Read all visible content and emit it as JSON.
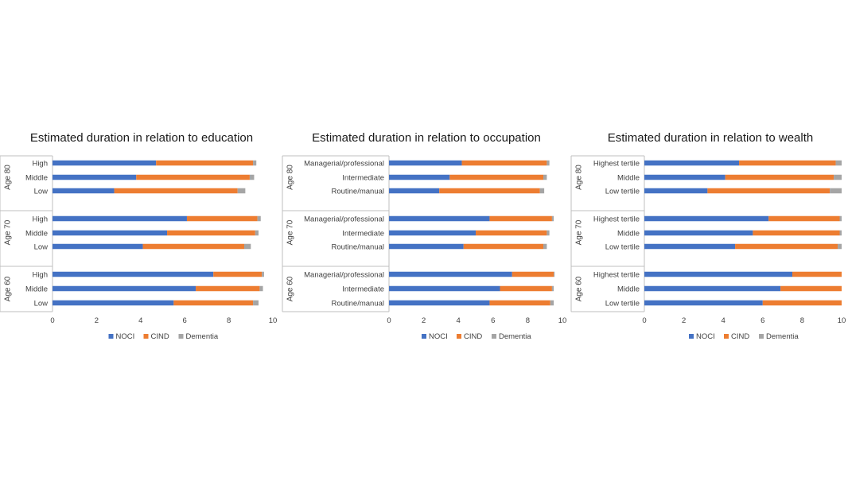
{
  "colors": {
    "NOCI": "#4472C4",
    "CIND": "#ED7D31",
    "Dementia": "#A5A5A5"
  },
  "chart_data": [
    {
      "type": "bar",
      "orientation": "horizontal-stacked",
      "title": "Estimated duration in relation to education",
      "xlim": [
        0,
        10
      ],
      "xticks": [
        "0",
        "2",
        "4",
        "6",
        "8",
        "10"
      ],
      "legend": [
        "NOCI",
        "CIND",
        "Dementia"
      ],
      "groups": [
        {
          "label": "Age 80",
          "rows": [
            {
              "category": "High",
              "values": [
                4.7,
                4.4,
                0.15
              ]
            },
            {
              "category": "Middle",
              "values": [
                3.8,
                5.15,
                0.2
              ]
            },
            {
              "category": "Low",
              "values": [
                2.8,
                5.6,
                0.35
              ]
            }
          ]
        },
        {
          "label": "Age 70",
          "rows": [
            {
              "category": "High",
              "values": [
                6.1,
                3.2,
                0.15
              ]
            },
            {
              "category": "Middle",
              "values": [
                5.2,
                4.0,
                0.15
              ]
            },
            {
              "category": "Low",
              "values": [
                4.1,
                4.6,
                0.3
              ]
            }
          ]
        },
        {
          "label": "Age 60",
          "rows": [
            {
              "category": "High",
              "values": [
                7.3,
                2.2,
                0.1
              ]
            },
            {
              "category": "Middle",
              "values": [
                6.5,
                2.9,
                0.15
              ]
            },
            {
              "category": "Low",
              "values": [
                5.5,
                3.6,
                0.25
              ]
            }
          ]
        }
      ]
    },
    {
      "type": "bar",
      "orientation": "horizontal-stacked",
      "title": "Estimated duration in relation to occupation",
      "xlim": [
        0,
        10
      ],
      "xticks": [
        "0",
        "2",
        "4",
        "6",
        "8",
        "10"
      ],
      "legend": [
        "NOCI",
        "CIND",
        "Dementia"
      ],
      "groups": [
        {
          "label": "Age 80",
          "rows": [
            {
              "category": "Managerial/professional",
              "values": [
                4.2,
                4.9,
                0.15
              ]
            },
            {
              "category": "Intermediate",
              "values": [
                3.5,
                5.4,
                0.2
              ]
            },
            {
              "category": "Routine/manual",
              "values": [
                2.9,
                5.8,
                0.25
              ]
            }
          ]
        },
        {
          "label": "Age 70",
          "rows": [
            {
              "category": "Managerial/professional",
              "values": [
                5.8,
                3.6,
                0.1
              ]
            },
            {
              "category": "Intermediate",
              "values": [
                5.0,
                4.1,
                0.15
              ]
            },
            {
              "category": "Routine/manual",
              "values": [
                4.3,
                4.6,
                0.2
              ]
            }
          ]
        },
        {
          "label": "Age 60",
          "rows": [
            {
              "category": "Managerial/professional",
              "values": [
                7.1,
                2.4,
                0.05
              ]
            },
            {
              "category": "Intermediate",
              "values": [
                6.4,
                3.0,
                0.1
              ]
            },
            {
              "category": "Routine/manual",
              "values": [
                5.8,
                3.5,
                0.2
              ]
            }
          ]
        }
      ]
    },
    {
      "type": "bar",
      "orientation": "horizontal-stacked",
      "title": "Estimated duration in relation to wealth",
      "xlim": [
        0,
        10
      ],
      "xticks": [
        "0",
        "2",
        "4",
        "6",
        "8",
        "10"
      ],
      "legend": [
        "NOCI",
        "CIND",
        "Dementia"
      ],
      "groups": [
        {
          "label": "Age 80",
          "rows": [
            {
              "category": "Highest tertile",
              "values": [
                4.8,
                4.9,
                0.3
              ]
            },
            {
              "category": "Middle",
              "values": [
                4.1,
                5.5,
                0.4
              ]
            },
            {
              "category": "Low tertile",
              "values": [
                3.2,
                6.2,
                0.6
              ]
            }
          ]
        },
        {
          "label": "Age 70",
          "rows": [
            {
              "category": "Highest tertile",
              "values": [
                6.3,
                3.6,
                0.1
              ]
            },
            {
              "category": "Middle",
              "values": [
                5.5,
                4.4,
                0.1
              ]
            },
            {
              "category": "Low tertile",
              "values": [
                4.6,
                5.2,
                0.2
              ]
            }
          ]
        },
        {
          "label": "Age 60",
          "rows": [
            {
              "category": "Highest tertile",
              "values": [
                7.5,
                2.5,
                0.0
              ]
            },
            {
              "category": "Middle",
              "values": [
                6.9,
                3.1,
                0.0
              ]
            },
            {
              "category": "Low tertile",
              "values": [
                6.0,
                4.0,
                0.0
              ]
            }
          ]
        }
      ]
    }
  ]
}
